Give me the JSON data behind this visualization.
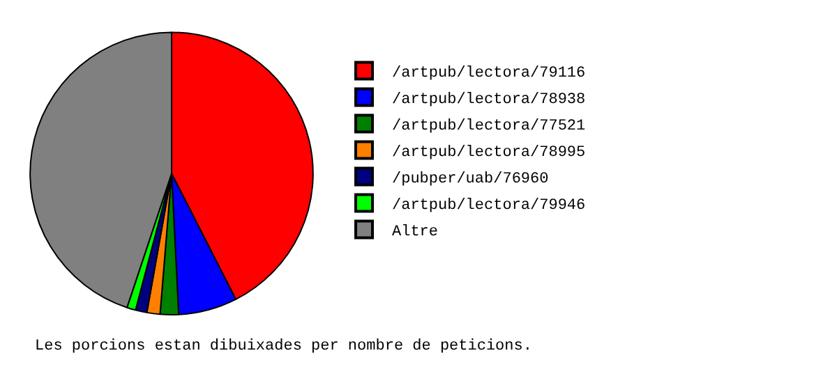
{
  "chart_data": {
    "type": "pie",
    "categories": [
      "/artpub/lectora/79116",
      "/artpub/lectora/78938",
      "/artpub/lectora/77521",
      "/artpub/lectora/78995",
      "/pubper/uab/76960",
      "/artpub/lectora/79946",
      "Altre"
    ],
    "values": [
      42.5,
      6.7,
      2.1,
      1.5,
      1.3,
      1.0,
      44.9
    ],
    "colors": [
      "#ff0000",
      "#0000ff",
      "#008000",
      "#ff8000",
      "#000080",
      "#00ff00",
      "#808080"
    ],
    "legend": "right",
    "annotations": [
      "Les porcions estan dibuixades per nombre de peticions."
    ]
  }
}
